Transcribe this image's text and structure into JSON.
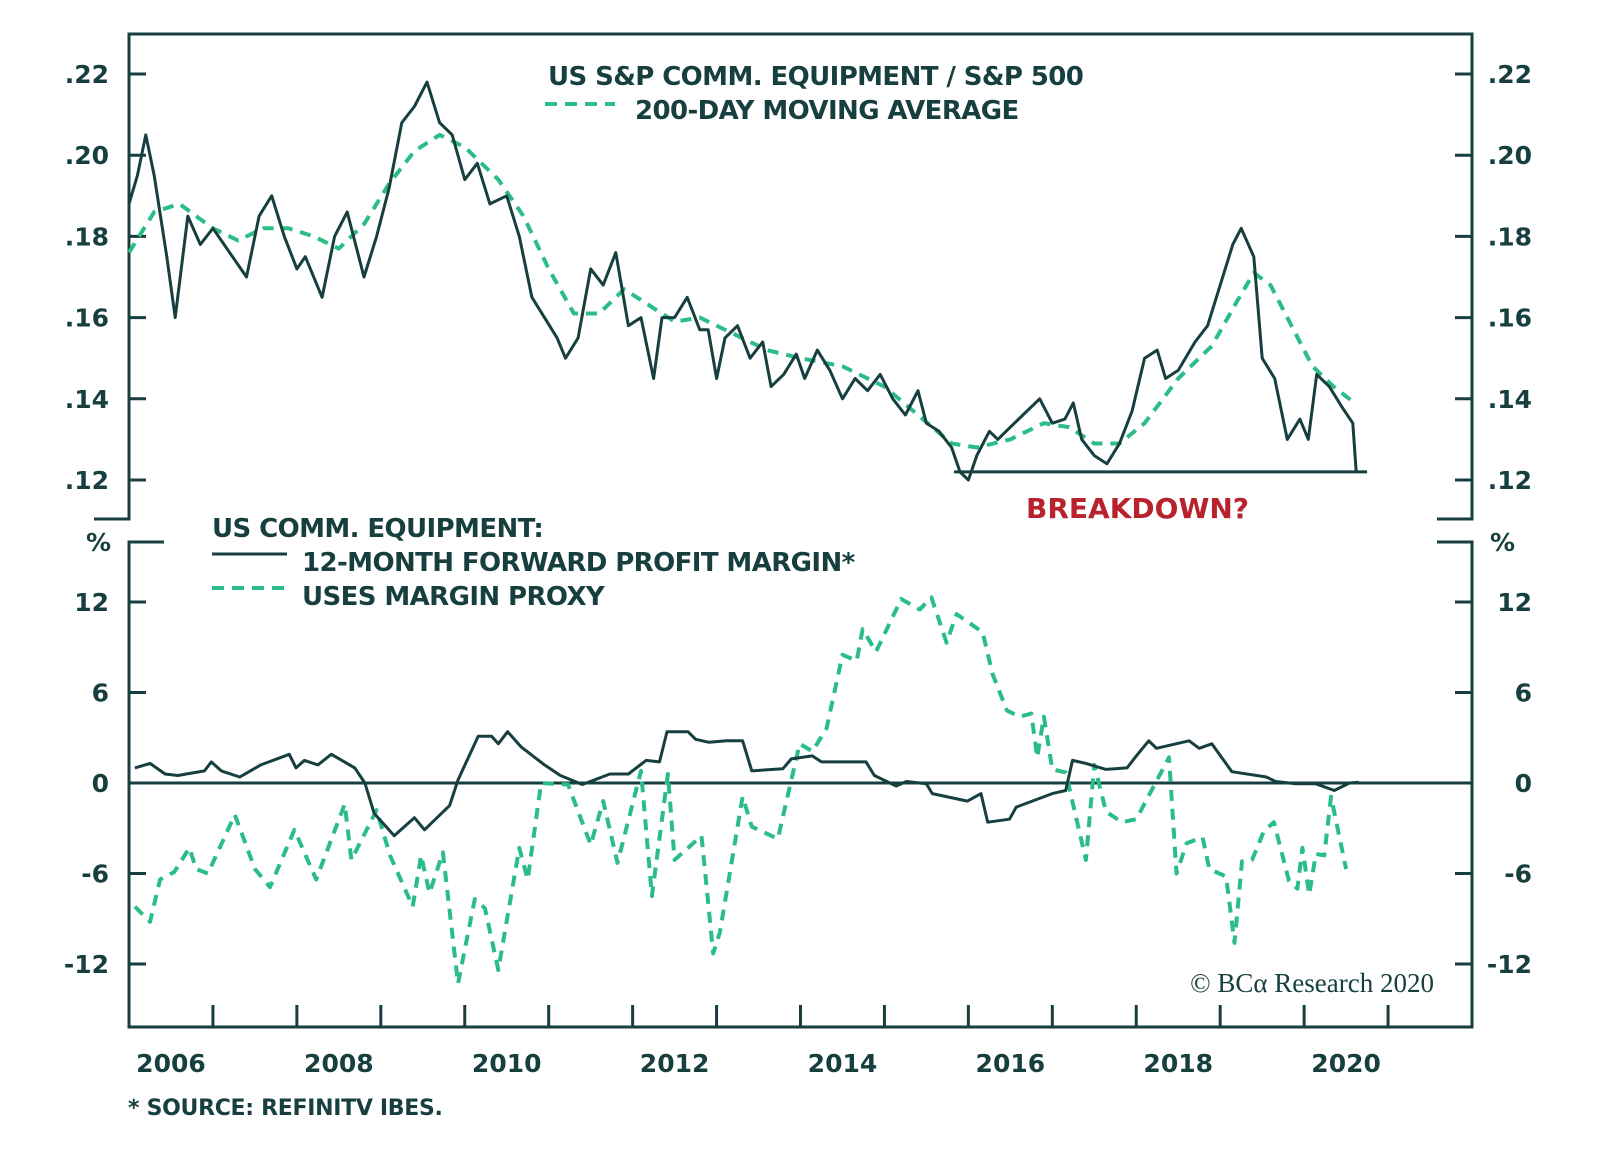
{
  "chart_data": [
    {
      "type": "line",
      "panel": "top",
      "title": "US S&P COMM. EQUIPMENT / S&P 500",
      "xlabel": "",
      "ylabel": "",
      "ylim": [
        0.11,
        0.231
      ],
      "xlim": [
        2006.0,
        2022.0
      ],
      "yticks": [
        0.12,
        0.14,
        0.16,
        0.18,
        0.2,
        0.22
      ],
      "ytick_labels": [
        ".12",
        ".14",
        ".16",
        ".18",
        ".20",
        ".22"
      ],
      "grid": false,
      "legend": "top-center",
      "series": [
        {
          "name": "US S&P COMM. EQUIPMENT / S&P 500",
          "style": "solid",
          "color": "#173f3f",
          "x": [
            2006.0,
            2006.1,
            2006.2,
            2006.3,
            2006.45,
            2006.55,
            2006.7,
            2006.85,
            2007.0,
            2007.2,
            2007.4,
            2007.55,
            2007.7,
            2007.85,
            2008.0,
            2008.1,
            2008.3,
            2008.45,
            2008.6,
            2008.8,
            2008.95,
            2009.1,
            2009.25,
            2009.4,
            2009.55,
            2009.7,
            2009.85,
            2010.0,
            2010.15,
            2010.3,
            2010.5,
            2010.65,
            2010.8,
            2010.95,
            2011.1,
            2011.2,
            2011.35,
            2011.5,
            2011.65,
            2011.8,
            2011.95,
            2012.1,
            2012.25,
            2012.35,
            2012.5,
            2012.65,
            2012.8,
            2012.9,
            2013.0,
            2013.1,
            2013.25,
            2013.4,
            2013.55,
            2013.65,
            2013.8,
            2013.95,
            2014.05,
            2014.2,
            2014.35,
            2014.5,
            2014.65,
            2014.8,
            2014.95,
            2015.1,
            2015.25,
            2015.4,
            2015.5,
            2015.65,
            2015.8,
            2015.9,
            2016.0,
            2016.1,
            2016.25,
            2016.35,
            2016.5,
            2016.65,
            2016.85,
            2017.0,
            2017.15,
            2017.25,
            2017.35,
            2017.5,
            2017.65,
            2017.8,
            2017.95,
            2018.1,
            2018.25,
            2018.35,
            2018.5,
            2018.7,
            2018.85,
            2019.0,
            2019.15,
            2019.25,
            2019.4,
            2019.5,
            2019.65,
            2019.8,
            2019.95,
            2020.05,
            2020.15,
            2020.3,
            2020.45,
            2020.58,
            2020.62
          ],
          "values": [
            0.188,
            0.195,
            0.205,
            0.195,
            0.175,
            0.16,
            0.185,
            0.178,
            0.182,
            0.176,
            0.17,
            0.185,
            0.19,
            0.18,
            0.172,
            0.175,
            0.165,
            0.18,
            0.186,
            0.17,
            0.18,
            0.192,
            0.208,
            0.212,
            0.218,
            0.208,
            0.205,
            0.194,
            0.198,
            0.188,
            0.19,
            0.18,
            0.165,
            0.16,
            0.155,
            0.15,
            0.155,
            0.172,
            0.168,
            0.176,
            0.158,
            0.16,
            0.145,
            0.16,
            0.16,
            0.165,
            0.157,
            0.157,
            0.145,
            0.155,
            0.158,
            0.15,
            0.154,
            0.143,
            0.146,
            0.151,
            0.145,
            0.152,
            0.147,
            0.14,
            0.145,
            0.142,
            0.146,
            0.14,
            0.136,
            0.142,
            0.134,
            0.132,
            0.128,
            0.122,
            0.12,
            0.126,
            0.132,
            0.13,
            0.133,
            0.136,
            0.14,
            0.134,
            0.135,
            0.139,
            0.13,
            0.126,
            0.124,
            0.129,
            0.137,
            0.15,
            0.152,
            0.145,
            0.147,
            0.154,
            0.158,
            0.168,
            0.178,
            0.182,
            0.175,
            0.15,
            0.145,
            0.13,
            0.135,
            0.13,
            0.146,
            0.143,
            0.138,
            0.134,
            0.122
          ]
        },
        {
          "name": "200-DAY MOVING AVERAGE",
          "style": "dashed",
          "color": "#2bbd89",
          "x": [
            2006.0,
            2006.3,
            2006.6,
            2007.0,
            2007.3,
            2007.6,
            2007.9,
            2008.2,
            2008.5,
            2008.8,
            2009.1,
            2009.4,
            2009.7,
            2010.0,
            2010.4,
            2010.7,
            2011.0,
            2011.3,
            2011.6,
            2011.9,
            2012.2,
            2012.5,
            2012.8,
            2013.2,
            2013.6,
            2014.0,
            2014.5,
            2015.0,
            2015.4,
            2015.8,
            2016.1,
            2016.5,
            2016.9,
            2017.2,
            2017.5,
            2017.8,
            2018.1,
            2018.5,
            2018.9,
            2019.2,
            2019.4,
            2019.6,
            2019.85,
            2020.1,
            2020.35,
            2020.6
          ],
          "values": [
            0.176,
            0.186,
            0.188,
            0.182,
            0.179,
            0.182,
            0.182,
            0.18,
            0.177,
            0.183,
            0.193,
            0.201,
            0.205,
            0.202,
            0.194,
            0.185,
            0.172,
            0.161,
            0.161,
            0.167,
            0.163,
            0.159,
            0.16,
            0.156,
            0.152,
            0.15,
            0.148,
            0.143,
            0.136,
            0.129,
            0.128,
            0.13,
            0.134,
            0.133,
            0.129,
            0.129,
            0.134,
            0.145,
            0.153,
            0.164,
            0.171,
            0.168,
            0.158,
            0.148,
            0.143,
            0.139
          ]
        }
      ],
      "annotations": [
        {
          "text": "BREAKDOWN?",
          "color": "#b8222c",
          "support_level": 0.122,
          "from_x": 2015.83,
          "to_x": 2020.75
        }
      ]
    },
    {
      "type": "line",
      "panel": "bottom",
      "title": "US COMM. EQUIPMENT:",
      "xlabel": "",
      "ylabel": "%",
      "ylim": [
        -16.0,
        15.9
      ],
      "xlim": [
        2006.0,
        2022.0
      ],
      "yticks": [
        -12,
        -6,
        0,
        6,
        12
      ],
      "ytick_labels": [
        "-12",
        "-6",
        "0",
        "6",
        "12"
      ],
      "xticks": [
        2006,
        2008,
        2010,
        2012,
        2014,
        2016,
        2018,
        2020
      ],
      "xtick_labels": [
        "2006",
        "2008",
        "2010",
        "2012",
        "2014",
        "2016",
        "2018",
        "2020"
      ],
      "grid": false,
      "zero_line": true,
      "legend": "top-left",
      "series": [
        {
          "name": "12-MONTH FORWARD PROFIT MARGIN*",
          "style": "solid",
          "color": "#173f3f",
          "x": [
            2006.07,
            2006.25,
            2006.43,
            2006.58,
            2006.9,
            2006.98,
            2007.1,
            2007.32,
            2007.57,
            2007.91,
            2007.99,
            2008.09,
            2008.25,
            2008.41,
            2008.69,
            2008.81,
            2008.92,
            2009.16,
            2009.4,
            2009.52,
            2009.82,
            2009.92,
            2010.16,
            2010.32,
            2010.4,
            2010.51,
            2010.67,
            2010.95,
            2011.14,
            2011.4,
            2011.73,
            2011.95,
            2012.16,
            2012.32,
            2012.41,
            2012.66,
            2012.75,
            2012.91,
            2013.12,
            2013.31,
            2013.42,
            2013.79,
            2013.89,
            2014.14,
            2014.25,
            2014.78,
            2014.88,
            2015.14,
            2015.26,
            2015.5,
            2015.57,
            2015.99,
            2016.15,
            2016.23,
            2016.49,
            2016.57,
            2017.0,
            2017.16,
            2017.24,
            2017.4,
            2017.64,
            2017.89,
            2018.0,
            2018.15,
            2018.24,
            2018.63,
            2018.75,
            2018.9,
            2019.14,
            2019.55,
            2019.66,
            2019.9,
            2020.14,
            2020.36,
            2020.54,
            2020.65
          ],
          "values": [
            1.0,
            1.3,
            0.6,
            0.5,
            0.8,
            1.4,
            0.8,
            0.4,
            1.2,
            1.9,
            1.0,
            1.5,
            1.2,
            1.9,
            1.0,
            0.0,
            -2.0,
            -3.5,
            -2.3,
            -3.1,
            -1.5,
            0.2,
            3.1,
            3.1,
            2.6,
            3.4,
            2.4,
            1.2,
            0.5,
            -0.1,
            0.6,
            0.6,
            1.5,
            1.4,
            3.4,
            3.4,
            2.9,
            2.7,
            2.8,
            2.8,
            0.8,
            0.95,
            1.6,
            1.8,
            1.4,
            1.4,
            0.5,
            -0.2,
            0.1,
            -0.05,
            -0.7,
            -1.2,
            -0.7,
            -2.6,
            -2.4,
            -1.6,
            -0.7,
            -0.5,
            1.5,
            1.3,
            0.9,
            1.0,
            1.8,
            2.8,
            2.3,
            2.8,
            2.3,
            2.6,
            0.75,
            0.4,
            0.1,
            -0.05,
            -0.05,
            -0.5,
            0.0,
            0.05
          ]
        },
        {
          "name": "USES MARGIN PROXY",
          "style": "dashed",
          "color": "#2bbd89",
          "x": [
            2006.07,
            2006.25,
            2006.37,
            2006.54,
            2006.72,
            2006.8,
            2006.94,
            2007.26,
            2007.5,
            2007.68,
            2007.97,
            2008.23,
            2008.57,
            2008.65,
            2008.95,
            2009.11,
            2009.38,
            2009.48,
            2009.58,
            2009.74,
            2009.92,
            2010.12,
            2010.24,
            2010.4,
            2010.65,
            2010.75,
            2010.91,
            2011.23,
            2011.5,
            2011.65,
            2011.82,
            2012.1,
            2012.23,
            2012.42,
            2012.5,
            2012.82,
            2012.96,
            2013.04,
            2013.31,
            2013.42,
            2013.73,
            2013.99,
            2014.14,
            2014.31,
            2014.5,
            2014.67,
            2014.74,
            2014.9,
            2015.2,
            2015.42,
            2015.56,
            2015.74,
            2015.86,
            2016.17,
            2016.29,
            2016.46,
            2016.61,
            2016.75,
            2016.82,
            2016.9,
            2017.0,
            2017.16,
            2017.4,
            2017.5,
            2017.64,
            2017.83,
            2018.0,
            2018.39,
            2018.48,
            2018.6,
            2018.79,
            2018.87,
            2019.07,
            2019.17,
            2019.26,
            2019.38,
            2019.52,
            2019.64,
            2019.82,
            2019.92,
            2019.98,
            2020.06,
            2020.14,
            2020.24,
            2020.32,
            2020.5
          ],
          "values": [
            -8.2,
            -9.2,
            -6.4,
            -5.9,
            -4.3,
            -5.7,
            -6.0,
            -2.1,
            -5.7,
            -6.9,
            -3.1,
            -6.4,
            -1.4,
            -5.1,
            -1.8,
            -4.8,
            -8.2,
            -4.8,
            -7.3,
            -4.6,
            -13.3,
            -7.7,
            -8.3,
            -12.4,
            -4.3,
            -6.4,
            0.0,
            -0.1,
            -4.1,
            -1.2,
            -5.3,
            0.8,
            -7.5,
            0.6,
            -5.1,
            -3.5,
            -11.3,
            -9.9,
            -0.9,
            -2.9,
            -3.7,
            2.6,
            2.1,
            3.6,
            8.5,
            8.1,
            10.2,
            8.7,
            12.2,
            11.5,
            12.3,
            9.3,
            11.2,
            10.0,
            7.2,
            4.8,
            4.4,
            4.6,
            1.7,
            4.4,
            0.9,
            0.7,
            -5.1,
            1.2,
            -1.9,
            -2.6,
            -2.4,
            1.7,
            -6.0,
            -4.0,
            -3.6,
            -5.7,
            -6.2,
            -10.6,
            -5.2,
            -5.1,
            -3.2,
            -2.6,
            -6.5,
            -7.0,
            -4.3,
            -7.4,
            -4.7,
            -4.8,
            -0.9,
            -5.7
          ]
        }
      ]
    }
  ],
  "top_legend": {
    "title": "US S&P COMM. EQUIPMENT / S&P 500",
    "ma_label": "200-DAY MOVING AVERAGE"
  },
  "bottom_legend": {
    "title": "US COMM. EQUIPMENT:",
    "margin_label": "12-MONTH FORWARD PROFIT MARGIN*",
    "proxy_label": "USES MARGIN PROXY"
  },
  "annotation_text": "BREAKDOWN?",
  "bottom_unit_left": "%",
  "bottom_unit_right": "%",
  "copyright": "© BCA Research 2020",
  "copyright_alpha": "© BCα Research 2020",
  "footnote": "* SOURCE: REFINITV IBES.",
  "colors": {
    "axis": "#173f3f",
    "line_dark": "#173f3f",
    "line_green": "#2bbd89",
    "annotation_red": "#b8222c",
    "background": "#ffffff"
  }
}
